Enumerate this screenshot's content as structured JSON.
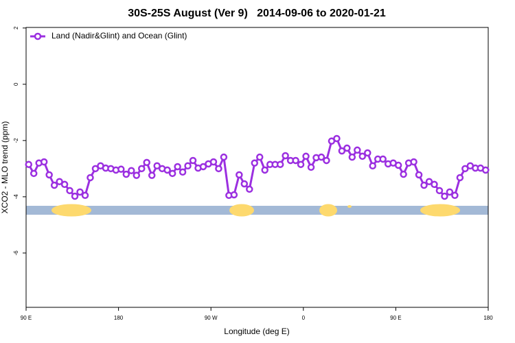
{
  "chart_data": {
    "type": "line",
    "title": "30S-25S August (Ver 9)   2014-09-06 to 2020-01-21",
    "xlabel": "Longitude (deg E)",
    "ylabel": "XCO2 - MLO trend (ppm)",
    "x": [
      92.5,
      97.5,
      102.5,
      107.5,
      112.5,
      117.5,
      122.5,
      127.5,
      132.5,
      137.5,
      142.5,
      147.5,
      152.5,
      157.5,
      162.5,
      167.5,
      172.5,
      177.5,
      182.5,
      187.5,
      192.5,
      197.5,
      202.5,
      207.5,
      212.5,
      217.5,
      222.5,
      227.5,
      232.5,
      237.5,
      242.5,
      247.5,
      252.5,
      257.5,
      262.5,
      267.5,
      272.5,
      277.5,
      282.5,
      287.5,
      292.5,
      297.5,
      302.5,
      307.5,
      312.5,
      317.5,
      322.5,
      327.5,
      332.5,
      337.5,
      342.5,
      347.5,
      352.5,
      357.5,
      362.5,
      367.5,
      372.5,
      377.5,
      382.5,
      387.5,
      392.5,
      397.5,
      402.5,
      407.5,
      412.5,
      417.5,
      422.5,
      427.5,
      432.5,
      437.5,
      442.5,
      447.5,
      452.5,
      457.5,
      462.5,
      467.5,
      472.5,
      477.5,
      482.5,
      487.5,
      492.5,
      497.5,
      502.5,
      507.5,
      512.5,
      517.5,
      522.5,
      527.5,
      532.5,
      537.5
    ],
    "series": [
      {
        "name": "Land (Nadir&Glint) and Ocean (Glint)",
        "color": "#9b2fe0",
        "values": [
          -2.85,
          -3.17,
          -2.8,
          -2.76,
          -3.22,
          -3.59,
          -3.46,
          -3.56,
          -3.78,
          -3.98,
          -3.83,
          -3.95,
          -3.32,
          -3.0,
          -2.9,
          -2.98,
          -3.0,
          -3.05,
          -3.02,
          -3.2,
          -3.07,
          -3.24,
          -3.0,
          -2.78,
          -3.24,
          -2.9,
          -3.0,
          -3.05,
          -3.17,
          -2.93,
          -3.12,
          -2.9,
          -2.71,
          -2.98,
          -2.93,
          -2.83,
          -2.76,
          -3.0,
          -2.59,
          -3.95,
          -3.93,
          -3.22,
          -3.54,
          -3.73,
          -2.8,
          -2.59,
          -3.05,
          -2.85,
          -2.85,
          -2.85,
          -2.54,
          -2.71,
          -2.71,
          -2.85,
          -2.56,
          -2.95,
          -2.61,
          -2.59,
          -2.71,
          -2.02,
          -1.93,
          -2.37,
          -2.27,
          -2.59,
          -2.34,
          -2.56,
          -2.44,
          -2.9,
          -2.66,
          -2.66,
          -2.83,
          -2.8,
          -2.88,
          -3.2,
          -2.8,
          -2.76,
          -3.22,
          -3.59,
          -3.46,
          -3.56,
          -3.78,
          -3.98,
          -3.83,
          -3.95,
          -3.32,
          -3.0,
          -2.9,
          -2.98,
          -2.98,
          -3.05
        ]
      }
    ],
    "xlim": [
      90,
      540
    ],
    "xticks": [
      {
        "value": 90,
        "label": "90 E"
      },
      180,
      {
        "value": 270,
        "label": "90 W"
      },
      {
        "value": 360,
        "label": "0"
      },
      {
        "value": 450,
        "label": "90 E"
      },
      {
        "value": 540,
        "label": "180"
      }
    ],
    "ylim": [
      -7.93,
      2.02
    ],
    "yticks": [
      2,
      0,
      -2,
      -4,
      -6
    ],
    "legend": "top-left"
  }
}
